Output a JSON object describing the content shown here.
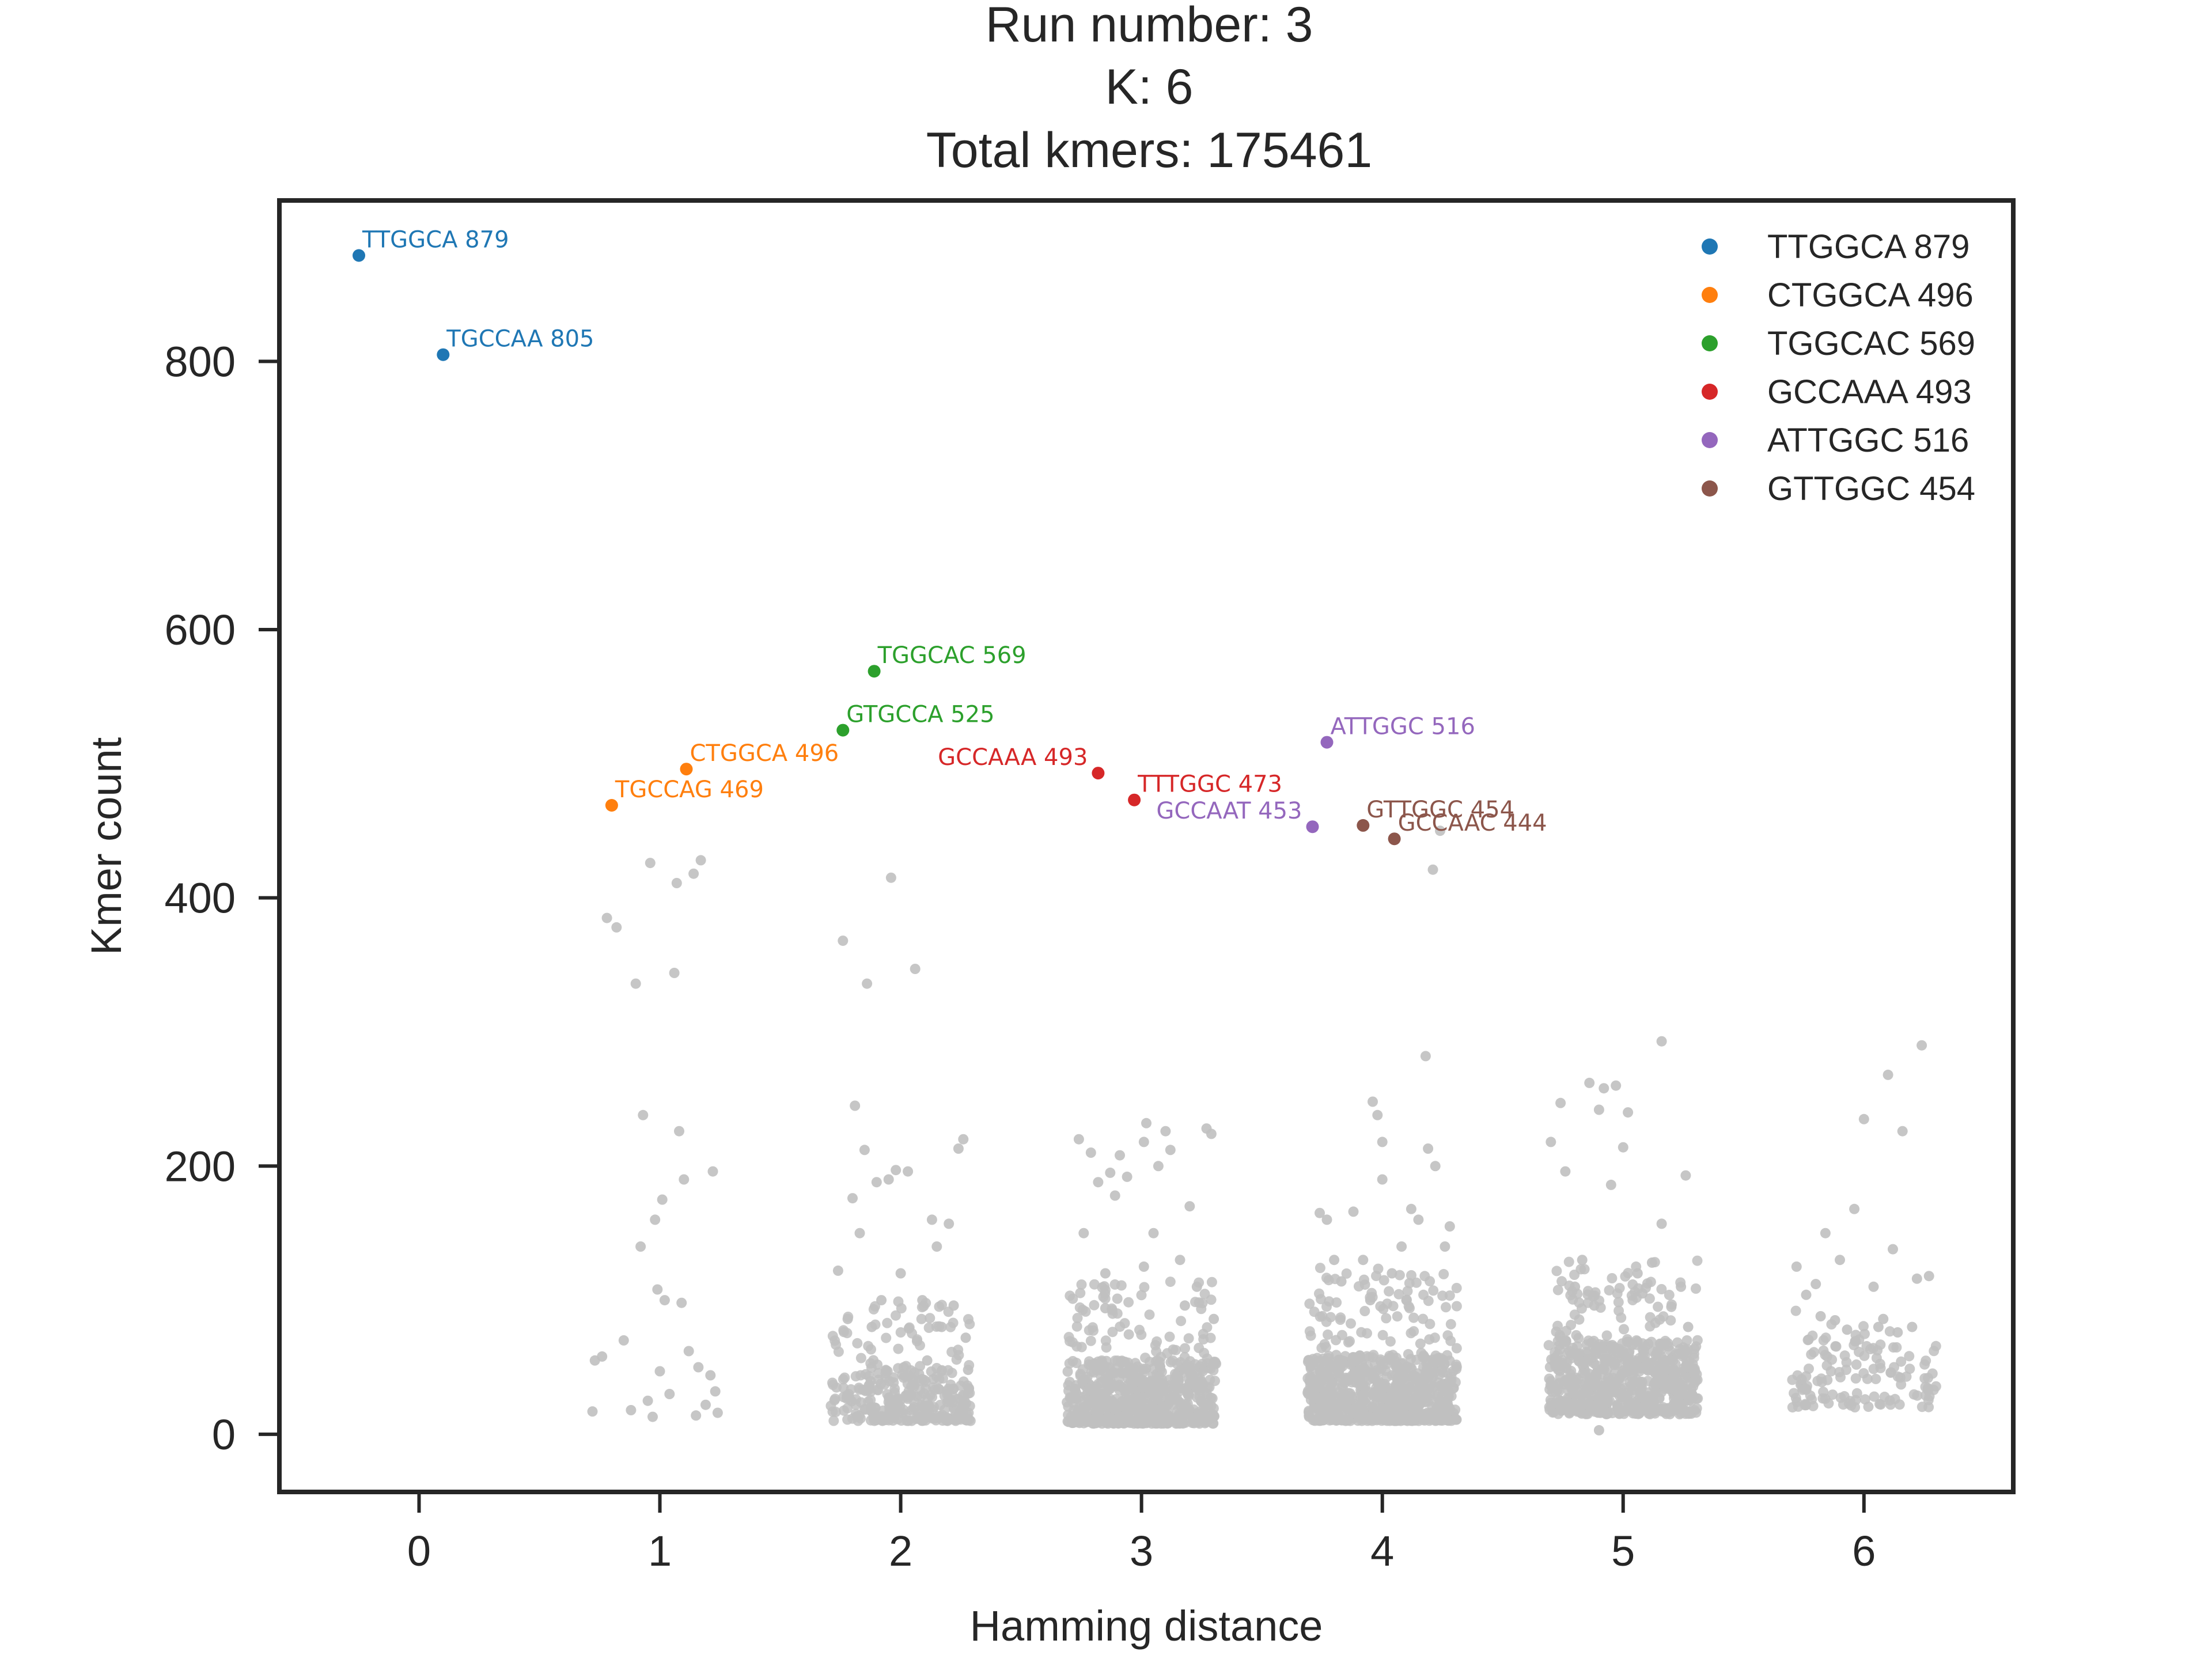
{
  "chart_data": {
    "type": "scatter",
    "title_lines": [
      "Run number: 3",
      "K: 6",
      "Total kmers: 175461"
    ],
    "xlabel": "Hamming distance",
    "ylabel": "Kmer count",
    "xlim": [
      -0.58,
      6.62
    ],
    "ylim": [
      -43,
      920
    ],
    "xticks": [
      0,
      1,
      2,
      3,
      4,
      5,
      6
    ],
    "yticks": [
      0,
      200,
      400,
      600,
      800
    ],
    "grid": false,
    "legend_position": "top-right",
    "colors": {
      "blue": "#1f77b4",
      "orange": "#ff7f0e",
      "green": "#2ca02c",
      "red": "#d62728",
      "purple": "#9467bd",
      "brown": "#8c564b",
      "background_points": "#c0c0c0"
    },
    "legend": [
      {
        "label": "TTGGCA 879",
        "color": "#1f77b4"
      },
      {
        "label": "CTGGCA 496",
        "color": "#ff7f0e"
      },
      {
        "label": "TGGCAC 569",
        "color": "#2ca02c"
      },
      {
        "label": "GCCAAA 493",
        "color": "#d62728"
      },
      {
        "label": "ATTGGC 516",
        "color": "#9467bd"
      },
      {
        "label": "GTTGGC 454",
        "color": "#8c564b"
      }
    ],
    "highlighted": [
      {
        "label": "TTGGCA 879",
        "x": -0.25,
        "y": 879,
        "color": "#1f77b4",
        "label_side": "right"
      },
      {
        "label": "TGCCAA 805",
        "x": 0.1,
        "y": 805,
        "color": "#1f77b4",
        "label_side": "right"
      },
      {
        "label": "TGCCAG 469",
        "x": 0.8,
        "y": 469,
        "color": "#ff7f0e",
        "label_side": "right"
      },
      {
        "label": "CTGGCA 496",
        "x": 1.11,
        "y": 496,
        "color": "#ff7f0e",
        "label_side": "right"
      },
      {
        "label": "GTGCCA 525",
        "x": 1.76,
        "y": 525,
        "color": "#2ca02c",
        "label_side": "right"
      },
      {
        "label": "TGGCAC 569",
        "x": 1.89,
        "y": 569,
        "color": "#2ca02c",
        "label_side": "right"
      },
      {
        "label": "GCCAAA 493",
        "x": 2.82,
        "y": 493,
        "color": "#d62728",
        "label_side": "left"
      },
      {
        "label": "TTTGGC 473",
        "x": 2.97,
        "y": 473,
        "color": "#d62728",
        "label_side": "right"
      },
      {
        "label": "GCCAAT 453",
        "x": 3.71,
        "y": 453,
        "color": "#9467bd",
        "label_side": "left"
      },
      {
        "label": "ATTGGC 516",
        "x": 3.77,
        "y": 516,
        "color": "#9467bd",
        "label_side": "right"
      },
      {
        "label": "GTTGGC 454",
        "x": 3.92,
        "y": 454,
        "color": "#8c564b",
        "label_side": "right"
      },
      {
        "label": "GCCAAC 444",
        "x": 4.05,
        "y": 444,
        "color": "#8c564b",
        "label_side": "right"
      }
    ],
    "background_points": [
      {
        "x": 0.73,
        "y": 55
      },
      {
        "x": 0.76,
        "y": 58
      },
      {
        "x": 0.78,
        "y": 385
      },
      {
        "x": 0.82,
        "y": 378
      },
      {
        "x": 0.85,
        "y": 70
      },
      {
        "x": 0.88,
        "y": 18
      },
      {
        "x": 0.9,
        "y": 336
      },
      {
        "x": 0.92,
        "y": 140
      },
      {
        "x": 0.93,
        "y": 238
      },
      {
        "x": 0.95,
        "y": 25
      },
      {
        "x": 0.96,
        "y": 426
      },
      {
        "x": 0.97,
        "y": 13
      },
      {
        "x": 0.98,
        "y": 160
      },
      {
        "x": 0.99,
        "y": 108
      },
      {
        "x": 1.0,
        "y": 47
      },
      {
        "x": 1.01,
        "y": 175
      },
      {
        "x": 1.02,
        "y": 100
      },
      {
        "x": 1.04,
        "y": 30
      },
      {
        "x": 1.06,
        "y": 344
      },
      {
        "x": 1.07,
        "y": 411
      },
      {
        "x": 1.08,
        "y": 226
      },
      {
        "x": 1.09,
        "y": 98
      },
      {
        "x": 1.1,
        "y": 190
      },
      {
        "x": 1.12,
        "y": 62
      },
      {
        "x": 1.14,
        "y": 418
      },
      {
        "x": 1.15,
        "y": 14
      },
      {
        "x": 1.16,
        "y": 50
      },
      {
        "x": 1.17,
        "y": 428
      },
      {
        "x": 1.19,
        "y": 22
      },
      {
        "x": 1.21,
        "y": 44
      },
      {
        "x": 1.22,
        "y": 196
      },
      {
        "x": 1.23,
        "y": 32
      },
      {
        "x": 1.24,
        "y": 16
      },
      {
        "x": 0.72,
        "y": 17
      },
      {
        "x": 1.74,
        "y": 122
      },
      {
        "x": 1.76,
        "y": 368
      },
      {
        "x": 1.78,
        "y": 86
      },
      {
        "x": 1.8,
        "y": 176
      },
      {
        "x": 1.81,
        "y": 245
      },
      {
        "x": 1.83,
        "y": 150
      },
      {
        "x": 1.85,
        "y": 212
      },
      {
        "x": 1.86,
        "y": 336
      },
      {
        "x": 1.88,
        "y": 80
      },
      {
        "x": 1.9,
        "y": 188
      },
      {
        "x": 1.92,
        "y": 100
      },
      {
        "x": 1.95,
        "y": 190
      },
      {
        "x": 1.96,
        "y": 415
      },
      {
        "x": 1.98,
        "y": 197
      },
      {
        "x": 2.0,
        "y": 120
      },
      {
        "x": 2.03,
        "y": 196
      },
      {
        "x": 2.06,
        "y": 347
      },
      {
        "x": 2.09,
        "y": 100
      },
      {
        "x": 2.11,
        "y": 55
      },
      {
        "x": 2.13,
        "y": 160
      },
      {
        "x": 2.15,
        "y": 140
      },
      {
        "x": 2.17,
        "y": 80
      },
      {
        "x": 2.2,
        "y": 157
      },
      {
        "x": 2.22,
        "y": 96
      },
      {
        "x": 2.24,
        "y": 213
      },
      {
        "x": 2.26,
        "y": 220
      },
      {
        "x": 2.27,
        "y": 72
      },
      {
        "x": 2.28,
        "y": 48
      },
      {
        "x": 2.74,
        "y": 220
      },
      {
        "x": 2.76,
        "y": 150
      },
      {
        "x": 2.79,
        "y": 210
      },
      {
        "x": 2.82,
        "y": 188
      },
      {
        "x": 2.85,
        "y": 120
      },
      {
        "x": 2.87,
        "y": 195
      },
      {
        "x": 2.89,
        "y": 178
      },
      {
        "x": 2.91,
        "y": 208
      },
      {
        "x": 2.94,
        "y": 192
      },
      {
        "x": 3.01,
        "y": 218
      },
      {
        "x": 3.02,
        "y": 232
      },
      {
        "x": 3.05,
        "y": 150
      },
      {
        "x": 3.07,
        "y": 200
      },
      {
        "x": 3.1,
        "y": 226
      },
      {
        "x": 3.12,
        "y": 212
      },
      {
        "x": 3.16,
        "y": 130
      },
      {
        "x": 3.2,
        "y": 170
      },
      {
        "x": 3.23,
        "y": 110
      },
      {
        "x": 3.27,
        "y": 228
      },
      {
        "x": 3.29,
        "y": 224
      },
      {
        "x": 3.3,
        "y": 86
      },
      {
        "x": 3.01,
        "y": 125
      },
      {
        "x": 2.85,
        "y": 94
      },
      {
        "x": 3.18,
        "y": 96
      },
      {
        "x": 3.74,
        "y": 165
      },
      {
        "x": 3.77,
        "y": 160
      },
      {
        "x": 3.8,
        "y": 130
      },
      {
        "x": 3.83,
        "y": 114
      },
      {
        "x": 3.88,
        "y": 166
      },
      {
        "x": 3.92,
        "y": 130
      },
      {
        "x": 3.96,
        "y": 248
      },
      {
        "x": 3.98,
        "y": 238
      },
      {
        "x": 4.0,
        "y": 218
      },
      {
        "x": 4.0,
        "y": 190
      },
      {
        "x": 4.04,
        "y": 120
      },
      {
        "x": 4.08,
        "y": 140
      },
      {
        "x": 4.12,
        "y": 168
      },
      {
        "x": 4.15,
        "y": 160
      },
      {
        "x": 4.19,
        "y": 213
      },
      {
        "x": 4.21,
        "y": 421
      },
      {
        "x": 4.22,
        "y": 200
      },
      {
        "x": 4.24,
        "y": 450
      },
      {
        "x": 4.26,
        "y": 140
      },
      {
        "x": 4.28,
        "y": 155
      },
      {
        "x": 4.18,
        "y": 282
      },
      {
        "x": 3.95,
        "y": 100
      },
      {
        "x": 4.1,
        "y": 100
      },
      {
        "x": 4.7,
        "y": 218
      },
      {
        "x": 4.74,
        "y": 247
      },
      {
        "x": 4.76,
        "y": 196
      },
      {
        "x": 4.8,
        "y": 110
      },
      {
        "x": 4.83,
        "y": 130
      },
      {
        "x": 4.86,
        "y": 262
      },
      {
        "x": 4.88,
        "y": 96
      },
      {
        "x": 4.9,
        "y": 242
      },
      {
        "x": 4.92,
        "y": 258
      },
      {
        "x": 4.95,
        "y": 186
      },
      {
        "x": 4.97,
        "y": 260
      },
      {
        "x": 5.0,
        "y": 214
      },
      {
        "x": 5.02,
        "y": 240
      },
      {
        "x": 5.06,
        "y": 120
      },
      {
        "x": 5.08,
        "y": 105
      },
      {
        "x": 5.12,
        "y": 128
      },
      {
        "x": 5.16,
        "y": 157
      },
      {
        "x": 5.2,
        "y": 95
      },
      {
        "x": 5.24,
        "y": 110
      },
      {
        "x": 5.26,
        "y": 193
      },
      {
        "x": 5.27,
        "y": 80
      },
      {
        "x": 4.9,
        "y": 3
      },
      {
        "x": 5.16,
        "y": 293
      },
      {
        "x": 5.72,
        "y": 125
      },
      {
        "x": 5.76,
        "y": 104
      },
      {
        "x": 5.8,
        "y": 112
      },
      {
        "x": 5.84,
        "y": 150
      },
      {
        "x": 5.88,
        "y": 85
      },
      {
        "x": 5.9,
        "y": 130
      },
      {
        "x": 5.93,
        "y": 78
      },
      {
        "x": 5.96,
        "y": 168
      },
      {
        "x": 6.0,
        "y": 235
      },
      {
        "x": 6.04,
        "y": 110
      },
      {
        "x": 6.06,
        "y": 80
      },
      {
        "x": 6.08,
        "y": 86
      },
      {
        "x": 6.1,
        "y": 268
      },
      {
        "x": 6.14,
        "y": 76
      },
      {
        "x": 6.16,
        "y": 226
      },
      {
        "x": 6.2,
        "y": 80
      },
      {
        "x": 6.22,
        "y": 116
      },
      {
        "x": 6.24,
        "y": 290
      },
      {
        "x": 6.27,
        "y": 118
      },
      {
        "x": 6.12,
        "y": 138
      },
      {
        "x": 5.82,
        "y": 88
      }
    ],
    "dense_clusters": [
      {
        "x_center": 2.0,
        "x_halfwidth": 0.29,
        "n": 230,
        "y_low": 10,
        "y_high": 50,
        "n_sparse": 90,
        "y_sparse_high": 100
      },
      {
        "x_center": 3.0,
        "x_halfwidth": 0.31,
        "n": 520,
        "y_low": 8,
        "y_high": 55,
        "n_sparse": 140,
        "y_sparse_high": 115
      },
      {
        "x_center": 4.0,
        "x_halfwidth": 0.31,
        "n": 620,
        "y_low": 10,
        "y_high": 60,
        "n_sparse": 150,
        "y_sparse_high": 125
      },
      {
        "x_center": 5.0,
        "x_halfwidth": 0.31,
        "n": 560,
        "y_low": 15,
        "y_high": 70,
        "n_sparse": 140,
        "y_sparse_high": 130
      },
      {
        "x_center": 6.0,
        "x_halfwidth": 0.3,
        "n": 110,
        "y_low": 20,
        "y_high": 75,
        "n_sparse": 20,
        "y_sparse_high": 95
      }
    ]
  }
}
